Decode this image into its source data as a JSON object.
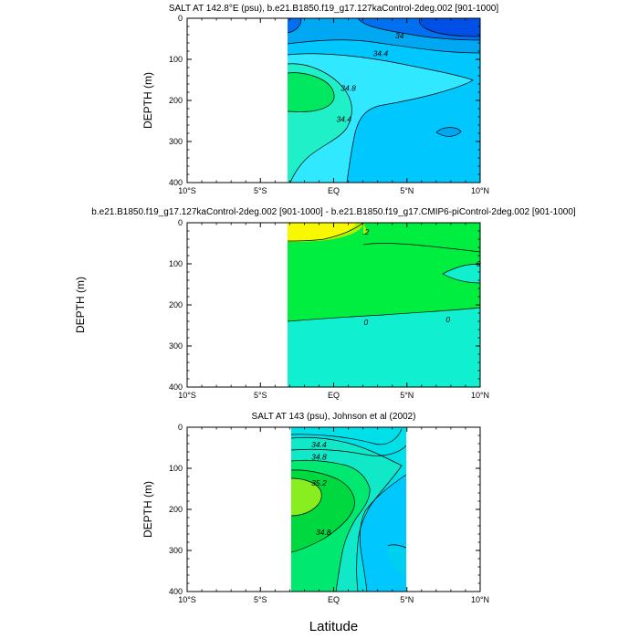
{
  "chart_data": [
    {
      "type": "contour",
      "title": "SALT AT 142.8°E (psu), b.e21.B1850.f19_g17.127kaControl-2deg.002 [901-1000]",
      "ylabel": "DEPTH (m)",
      "x_ticks": [
        "10°S",
        "5°S",
        "EQ",
        "5°N",
        "10°N"
      ],
      "x_tick_values": [
        -10,
        -5,
        0,
        5,
        10
      ],
      "y_ticks": [
        "0",
        "100",
        "200",
        "300",
        "400"
      ],
      "y_tick_values": [
        0,
        100,
        200,
        300,
        400
      ],
      "xlim": [
        -10,
        10
      ],
      "ylim": [
        0,
        400
      ],
      "data_x_range": [
        -3,
        10
      ],
      "contour_labels": [
        {
          "text": "34",
          "lat": 4.5,
          "depth": 42
        },
        {
          "text": "34.4",
          "lat": 3.2,
          "depth": 85
        },
        {
          "text": "34.8",
          "lat": 1.0,
          "depth": 170
        },
        {
          "text": "34.4",
          "lat": 0.7,
          "depth": 245
        }
      ],
      "colors": {
        "fresh_core": "#0050e8",
        "mid_blue": "#00a8f4",
        "light_blue": "#00c8ff",
        "cyan": "#30e8ff",
        "salty_core": "#00e860",
        "salty_edge": "#20f0c8"
      }
    },
    {
      "type": "contour",
      "title": "b.e21.B1850.f19_g17.127kaControl-2deg.002 [901-1000] - b.e21.B1850.f19_g17.CMIP6-piControl-2deg.002 [901-1000]",
      "ylabel": "DEPTH (m)",
      "x_ticks": [
        "10°S",
        "5°S",
        "EQ",
        "5°N",
        "10°N"
      ],
      "x_tick_values": [
        -10,
        -5,
        0,
        5,
        10
      ],
      "y_ticks": [
        "0",
        "100",
        "200",
        "300",
        "400"
      ],
      "y_tick_values": [
        0,
        100,
        200,
        300,
        400
      ],
      "xlim": [
        -10,
        10
      ],
      "ylim": [
        0,
        400
      ],
      "data_x_range": [
        -3,
        10
      ],
      "contour_labels": [
        {
          "text": ".2",
          "lat": 2.2,
          "depth": 22
        },
        {
          "text": "0",
          "lat": 9.9,
          "depth": 100
        },
        {
          "text": "0",
          "lat": 2.2,
          "depth": 242
        },
        {
          "text": "0",
          "lat": 7.8,
          "depth": 235
        }
      ],
      "colors": {
        "positive_high": "#f8f800",
        "positive_mid": "#b0f000",
        "positive": "#00ee40",
        "near_zero": "#10f0d0"
      }
    },
    {
      "type": "contour",
      "title": "SALT AT 143 (psu), Johnson et al (2002)",
      "ylabel": "DEPTH (m)",
      "x_ticks": [
        "10°S",
        "5°S",
        "EQ",
        "5°N",
        "10°N"
      ],
      "x_tick_values": [
        -10,
        -5,
        0,
        5,
        10
      ],
      "y_ticks": [
        "0",
        "100",
        "200",
        "300",
        "400"
      ],
      "y_tick_values": [
        0,
        100,
        200,
        300,
        400
      ],
      "xlim": [
        -10,
        10
      ],
      "ylim": [
        0,
        400
      ],
      "data_x_range": [
        -3,
        5
      ],
      "contour_labels": [
        {
          "text": "34.4",
          "lat": -1.0,
          "depth": 42
        },
        {
          "text": "34.8",
          "lat": -1.0,
          "depth": 72
        },
        {
          "text": "35.2",
          "lat": -1.0,
          "depth": 135
        },
        {
          "text": "34.8",
          "lat": -0.7,
          "depth": 255
        }
      ],
      "colors": {
        "fresh": "#00c8ff",
        "mid": "#00e0e8",
        "teal": "#10e8c8",
        "green": "#00e870",
        "core_green": "#00d840",
        "core_yellow": "#88ee20"
      }
    }
  ],
  "xlabel": "Latitude"
}
